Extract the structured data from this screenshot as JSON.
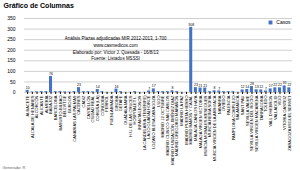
{
  "chart_data": {
    "type": "bar",
    "title": "Gráfico de Columnas",
    "annotations": [
      "Análisis Plazas adjudicadas MIR 2012-2013, 1-700",
      "www.casmedicos.com",
      "Elaborado por: Víctor J. Quesada - 16/8/13",
      "Fuente: Listados MSSSI"
    ],
    "caption": "Generado: R",
    "categories": [
      "ALBACETE",
      "ALCALÁ DE HENARES",
      "ALCORCÓN",
      "ALICANTE",
      "ALMERÍA",
      "BADAJOZ",
      "BARCELONA",
      "BASURTO-BILBAO",
      "BELLVITGE",
      "BURGOS",
      "CANARIAS LAS PALMAS",
      "CÁCERES",
      "CÁDIZ",
      "CASTELLÓN",
      "CIUDAD REAL",
      "CORUÑA (LA)",
      "CÓRDOBA",
      "FERROL",
      "FUENLABRADA",
      "GIRONA",
      "GETAFE",
      "GUADALAJARA",
      "H.U. DE LAS CRUCES",
      "HOSPITALET L.",
      "INFANTA LEONOR",
      "LA CANDELARIA (TENERIFE)",
      "LAGO GUADALHORCE",
      "LOZANO BLESA ZARAGOZA",
      "LUGO",
      "MADRID 12 OCTUBRE",
      "MADRID CLÍNICO SAN CARLOS",
      "MADRID FUNDACIÓN JIMÉNEZ DÍAZ",
      "MADRID GREGORIO MARAÑÓN",
      "MADRID LA PAZ",
      "MADRID PUERTA HIERRO",
      "MADRID RAMÓN Y CAJAL",
      "MÁLAGA CARLOS HAYA",
      "MÁLAGA VIRGEN VICTORIA",
      "MURCIA MORALES MESEGUER",
      "MURCIA REINA SOFÍA",
      "MURCIA VIRGEN DE LA ARRIXACA",
      "NAVARRA",
      "OVIEDO",
      "PALENCIA",
      "PAMPLONA COMPLEJO",
      "SALAMANCA",
      "SANT PAU",
      "SEVILLA VALME",
      "SEVILLA VIRGEN DEL ROCÍO",
      "SEVILLA VIRGEN MACARENA",
      "TARRAGONA",
      "TOLEDO",
      "VALL D'HEBRON",
      "VALLADOLID",
      "VIGO",
      "VITORIA-GASTEIZ",
      "ZARAGOZA MIGUEL SERVET"
    ],
    "series": [
      {
        "name": "Casos",
        "color": "#4472C4",
        "values": [
          10,
          2,
          3,
          4,
          4,
          76,
          4,
          4,
          3,
          2,
          4,
          23,
          4,
          4,
          3,
          14,
          4,
          1,
          1,
          16,
          4,
          1,
          1,
          4,
          1,
          1,
          7,
          17,
          4,
          4,
          4,
          8,
          4,
          1,
          1,
          308,
          23,
          21,
          21,
          4,
          8,
          7,
          4,
          4,
          4,
          1,
          12,
          14,
          28,
          13,
          12,
          7,
          17,
          22,
          22,
          31,
          22
        ],
        "value_labels": [
          "10",
          null,
          null,
          null,
          null,
          "76",
          null,
          null,
          null,
          null,
          null,
          "23",
          null,
          null,
          null,
          "14",
          null,
          null,
          null,
          "16",
          null,
          null,
          null,
          null,
          null,
          null,
          "7",
          "17",
          null,
          null,
          null,
          "8",
          null,
          null,
          null,
          "308",
          "23",
          "21",
          "21",
          null,
          "8",
          "7",
          null,
          null,
          null,
          null,
          "12",
          "14",
          "28",
          "13",
          "12",
          "7",
          "17",
          "22",
          "22",
          "31",
          "22"
        ]
      }
    ],
    "ylim": [
      0,
      350
    ],
    "yticks": [
      0,
      50,
      100,
      150,
      200,
      250,
      300,
      350
    ],
    "grid": true,
    "legend": "upper right",
    "data_labels": true
  }
}
